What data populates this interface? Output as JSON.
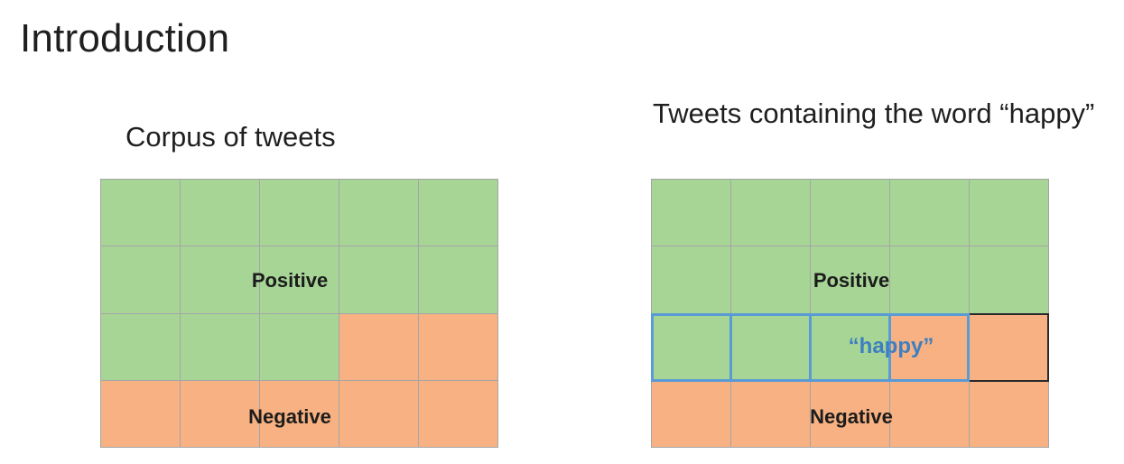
{
  "slide": {
    "title": "Introduction"
  },
  "left_panel": {
    "title": "Corpus of tweets",
    "positive_label": "Positive",
    "negative_label": "Negative",
    "grid": {
      "cols": 5,
      "rows": 4,
      "cells": [
        [
          "pos",
          "pos",
          "pos",
          "pos",
          "pos"
        ],
        [
          "pos",
          "pos",
          "pos",
          "pos",
          "pos"
        ],
        [
          "pos",
          "pos",
          "pos",
          "neg",
          "neg"
        ],
        [
          "neg",
          "neg",
          "neg",
          "neg",
          "neg"
        ]
      ]
    }
  },
  "right_panel": {
    "title": "Tweets containing the word “happy”",
    "positive_label": "Positive",
    "negative_label": "Negative",
    "highlight_label": "“happy”",
    "grid": {
      "cols": 5,
      "rows": 4,
      "cells": [
        [
          "pos",
          "pos",
          "pos",
          "pos",
          "pos"
        ],
        [
          "pos",
          "pos",
          "pos",
          "pos",
          "pos"
        ],
        [
          "pos",
          "pos",
          "pos",
          "neg",
          "neg"
        ],
        [
          "neg",
          "neg",
          "neg",
          "neg",
          "neg"
        ]
      ]
    }
  },
  "colors": {
    "positive": "#a7d596",
    "negative": "#f7b182",
    "highlight": "#5b9bd5"
  }
}
